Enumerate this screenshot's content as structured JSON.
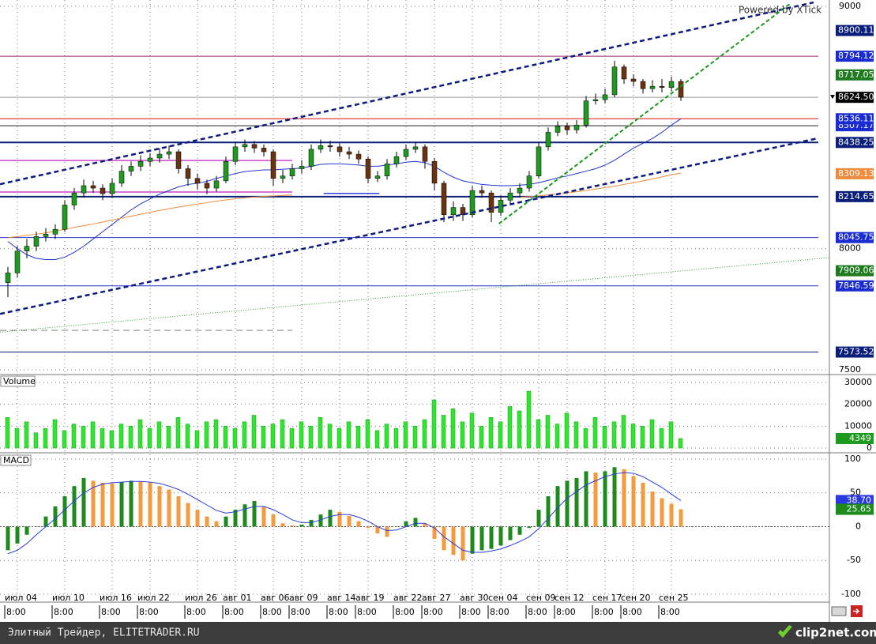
{
  "watermark": "Powered by XTick",
  "chart_data": [
    {
      "type": "candlestick",
      "categories": [
        null,
        "июл 04",
        null,
        null,
        null,
        null,
        "июл 10",
        null,
        null,
        null,
        null,
        "июл 16",
        null,
        null,
        null,
        "июл 22",
        null,
        null,
        null,
        null,
        "июл 26",
        null,
        null,
        null,
        "авг 01",
        null,
        null,
        null,
        "авг 06",
        null,
        null,
        "авг 09",
        null,
        null,
        null,
        "авг 14",
        null,
        null,
        "авг 19",
        null,
        null,
        null,
        "авг 22",
        null,
        null,
        "авг 27",
        null,
        null,
        null,
        "авг 30",
        null,
        null,
        "сен 04",
        null,
        null,
        null,
        "сен 09",
        null,
        null,
        "сен 12",
        null,
        null,
        null,
        "сен 17",
        null,
        null,
        "сен 20",
        null,
        null,
        null,
        "сен 25",
        null
      ],
      "times": [
        null,
        "8:00",
        null,
        null,
        null,
        null,
        "8:00",
        null,
        null,
        null,
        null,
        "8:00",
        null,
        null,
        null,
        "8:00",
        null,
        null,
        null,
        null,
        "8:00",
        null,
        null,
        null,
        "8:00",
        null,
        null,
        null,
        "8:00",
        null,
        null,
        "8:00",
        null,
        null,
        null,
        "8:00",
        null,
        null,
        "8:00",
        null,
        null,
        null,
        "8:00",
        null,
        null,
        "8:00",
        null,
        null,
        null,
        "8:00",
        null,
        null,
        "8:00",
        null,
        null,
        null,
        "8:00",
        null,
        null,
        "8:00",
        null,
        null,
        null,
        "8:00",
        null,
        null,
        "8:00",
        null,
        null,
        null,
        "8:00",
        null
      ],
      "open": [
        7860,
        7900,
        7990,
        8010,
        8050,
        8060,
        8080,
        8180,
        8230,
        8260,
        8250,
        8227,
        8270,
        8320,
        8340,
        8360,
        8374,
        8390,
        8400,
        8330,
        8290,
        8270,
        8250,
        8280,
        8360,
        8420,
        8430,
        8415,
        8400,
        8290,
        8300,
        8330,
        8340,
        8410,
        8425,
        8420,
        8400,
        8390,
        8370,
        8290,
        8300,
        8350,
        8380,
        8410,
        8420,
        8360,
        8270,
        8140,
        8170,
        8140,
        8240,
        8230,
        8150,
        8200,
        8230,
        8250,
        8300,
        8420,
        8480,
        8505,
        8490,
        8510,
        8610,
        8615,
        8635,
        8750,
        8700,
        8690,
        8660,
        8670,
        8665,
        8690
      ],
      "high": [
        7925,
        8010,
        8040,
        8070,
        8085,
        8100,
        8200,
        8250,
        8285,
        8280,
        8265,
        8290,
        8345,
        8360,
        8385,
        8395,
        8415,
        8425,
        8410,
        8345,
        8310,
        8285,
        8300,
        8380,
        8440,
        8450,
        8445,
        8430,
        8410,
        8325,
        8350,
        8365,
        8430,
        8450,
        8445,
        8435,
        8420,
        8405,
        8380,
        8320,
        8370,
        8400,
        8430,
        8440,
        8430,
        8375,
        8280,
        8195,
        8185,
        8260,
        8260,
        8240,
        8220,
        8250,
        8270,
        8320,
        8440,
        8500,
        8525,
        8520,
        8530,
        8630,
        8640,
        8660,
        8775,
        8760,
        8720,
        8700,
        8695,
        8700,
        8710,
        8700
      ],
      "low": [
        7800,
        7880,
        7960,
        7990,
        8030,
        8040,
        8070,
        8160,
        8210,
        8230,
        8200,
        8210,
        8255,
        8300,
        8320,
        8340,
        8355,
        8370,
        8310,
        8260,
        8245,
        8225,
        8235,
        8270,
        8345,
        8400,
        8395,
        8380,
        8260,
        8270,
        8285,
        8310,
        8325,
        8395,
        8400,
        8380,
        8370,
        8350,
        8270,
        8275,
        8285,
        8335,
        8365,
        8395,
        8330,
        8240,
        8110,
        8115,
        8115,
        8130,
        8210,
        8110,
        8135,
        8185,
        8210,
        8235,
        8290,
        8405,
        8465,
        8470,
        8475,
        8500,
        8595,
        8600,
        8625,
        8680,
        8670,
        8640,
        8645,
        8645,
        8650,
        8610
      ],
      "close": [
        7900,
        7990,
        8010,
        8050,
        8060,
        8080,
        8180,
        8230,
        8260,
        8250,
        8227,
        8270,
        8320,
        8340,
        8360,
        8374,
        8390,
        8400,
        8330,
        8290,
        8270,
        8250,
        8280,
        8360,
        8420,
        8430,
        8415,
        8400,
        8290,
        8300,
        8330,
        8340,
        8410,
        8425,
        8420,
        8400,
        8390,
        8370,
        8290,
        8300,
        8350,
        8380,
        8410,
        8420,
        8360,
        8270,
        8140,
        8170,
        8140,
        8240,
        8230,
        8150,
        8200,
        8230,
        8250,
        8300,
        8420,
        8480,
        8505,
        8490,
        8510,
        8610,
        8615,
        8635,
        8750,
        8700,
        8690,
        8660,
        8670,
        8665,
        8690,
        8625
      ],
      "up_color": "#1e9a1e",
      "down_color": "#6b3410",
      "wick_color": "#000000",
      "ylim": [
        7484,
        9026
      ],
      "yticks": [
        7500,
        8000,
        9000
      ],
      "grid": true,
      "lines": [
        {
          "color": "#2233cc",
          "values": [
            8030,
            8000,
            7975,
            7960,
            7955,
            7955,
            7965,
            7985,
            8010,
            8040,
            8070,
            8100,
            8130,
            8160,
            8185,
            8205,
            8225,
            8240,
            8255,
            8265,
            8270,
            8278,
            8290,
            8300,
            8310,
            8318,
            8322,
            8325,
            8325,
            8328,
            8330,
            8333,
            8340,
            8348,
            8350,
            8350,
            8348,
            8345,
            8340,
            8340,
            8345,
            8350,
            8357,
            8360,
            8355,
            8340,
            8315,
            8295,
            8280,
            8272,
            8265,
            8262,
            8260,
            8260,
            8262,
            8265,
            8272,
            8282,
            8292,
            8300,
            8310,
            8320,
            8330,
            8345,
            8365,
            8390,
            8415,
            8435,
            8455,
            8480,
            8510,
            8536
          ]
        },
        {
          "color": "#f08a3c",
          "values": [
            8045,
            8050,
            8055,
            8060,
            8065,
            8072,
            8080,
            8088,
            8095,
            8102,
            8110,
            8118,
            8126,
            8134,
            8142,
            8150,
            8158,
            8165,
            8172,
            8178,
            8184,
            8190,
            8196,
            8201,
            8206,
            8210,
            8213,
            8216,
            8218,
            8220,
            8222,
            null,
            null,
            null,
            null,
            null,
            null,
            null,
            null,
            null,
            null,
            null,
            null,
            null,
            null,
            null,
            null,
            null,
            null,
            null,
            null,
            null,
            null,
            null,
            8212,
            8215,
            8218,
            8222,
            8226,
            8230,
            8235,
            8240,
            8246,
            8252,
            8258,
            8265,
            8272,
            8280,
            8288,
            8296,
            8305,
            8312
          ]
        }
      ],
      "levels": [
        {
          "value": 8900.11,
          "label": "8900.11",
          "color": "#0b1f7a"
        },
        {
          "value": 8794.12,
          "label": "8794.12",
          "color": "#1a2bd0",
          "line_color": "#9b2d6e"
        },
        {
          "value": 8717.05,
          "label": "8717.05",
          "color": "#1e7a1e"
        },
        {
          "value": 8624.5,
          "label": "8624.50",
          "color": "#000000",
          "line_color": "#999999",
          "current": true
        },
        {
          "value": 8536.11,
          "label": "8536.11",
          "color": "#1a2bd0",
          "line_color": "#e01010"
        },
        {
          "value": 8507.17,
          "label": "8507.17",
          "color": "#1a2bd0",
          "line_color": "#222222"
        },
        {
          "value": 8438.25,
          "label": "8438.25",
          "color": "#0b1f7a",
          "line_color": "#0b1f7a",
          "width": 2
        },
        {
          "value": 8309.13,
          "label": "8309.13",
          "color": "#f08a3c"
        },
        {
          "value": 8214.65,
          "label": "8214.65",
          "color": "#0b1f7a",
          "line_color": "#0b1f7a",
          "width": 2
        },
        {
          "value": 8045.75,
          "label": "8045.75",
          "color": "#1a2bd0",
          "line_color": "#2233cc"
        },
        {
          "value": 7909.06,
          "label": "7909.06",
          "color": "#1e7a1e"
        },
        {
          "value": 7846.59,
          "label": "7846.59",
          "color": "#1a2bd0",
          "line_color": "#2233cc"
        },
        {
          "value": 7573.52,
          "label": "7573.52",
          "color": "#0b1f7a",
          "line_color": "#0b1f7a"
        }
      ],
      "trendlines": [
        {
          "color": "#0d1a80",
          "width": 2.5,
          "dash": "6,4",
          "points": [
            [
              -0.83,
              8266
            ],
            [
              85,
              9016
            ]
          ]
        },
        {
          "color": "#0d1a80",
          "width": 2.5,
          "dash": "6,4",
          "points": [
            [
              -0.83,
              7731
            ],
            [
              85.4,
              8455
            ]
          ]
        },
        {
          "color": "#1a9a1a",
          "width": 2,
          "dash": "5,3",
          "points": [
            [
              51.8,
              8103
            ],
            [
              82.5,
              9010
            ]
          ]
        },
        {
          "color": "#2a9a2a",
          "width": 1,
          "dash": "1,2",
          "points": [
            [
              -0.83,
              7656
            ],
            [
              87.5,
              7966
            ]
          ]
        }
      ],
      "segments": [
        {
          "from": -0.83,
          "to": 30,
          "price": 8364,
          "color": "#cc44cc"
        },
        {
          "from": -0.83,
          "to": 30,
          "price": 8234,
          "color": "#cc44cc"
        },
        {
          "from": 33.3,
          "to": 39.2,
          "price": 8228,
          "color": "#3344dd"
        },
        {
          "from": -0.83,
          "to": 30,
          "price": 7663,
          "color": "#aaaaaa",
          "dash": "8,5"
        }
      ]
    },
    {
      "type": "bar",
      "title": "Volume",
      "values": [
        14000,
        9000,
        12000,
        7000,
        9000,
        13000,
        8000,
        11000,
        10000,
        12000,
        9000,
        8000,
        11000,
        10000,
        13000,
        9000,
        12000,
        10000,
        14000,
        11000,
        8000,
        12000,
        13000,
        10000,
        9000,
        12000,
        15000,
        10000,
        11000,
        13000,
        9000,
        12000,
        10000,
        14000,
        11000,
        9000,
        12000,
        10000,
        13000,
        8000,
        11000,
        9000,
        12000,
        10000,
        13000,
        22000,
        15000,
        18000,
        12000,
        16000,
        10000,
        14000,
        12000,
        19000,
        17000,
        26000,
        13000,
        15000,
        11000,
        16000,
        12000,
        9000,
        14000,
        10000,
        12000,
        15000,
        11000,
        10000,
        13000,
        9000,
        12000,
        4349
      ],
      "color": "#2ee62e",
      "edge_color": "#1a9a1a",
      "label_color": "#1e9a1e",
      "ylim": [
        -1800,
        33250
      ],
      "yticks": [
        0,
        10000,
        20000,
        30000
      ],
      "grid": true
    },
    {
      "type": "macd",
      "title": "MACD",
      "values": [
        -35,
        -25,
        -12,
        0,
        15,
        30,
        45,
        60,
        72,
        68,
        65,
        64,
        66,
        68,
        67,
        65,
        60,
        55,
        45,
        35,
        25,
        15,
        8,
        15,
        25,
        33,
        38,
        30,
        18,
        5,
        2,
        3,
        10,
        18,
        25,
        22,
        16,
        8,
        -2,
        -10,
        -15,
        0,
        8,
        13,
        5,
        -18,
        -35,
        -42,
        -50,
        -40,
        -35,
        -33,
        -28,
        -20,
        -12,
        -2,
        25,
        45,
        60,
        68,
        72,
        82,
        80,
        82,
        88,
        85,
        75,
        65,
        52,
        42,
        34,
        25.65
      ],
      "up_color": "#1e8a1e",
      "down_color": "#f39a3c",
      "signal": {
        "color": "#2a3adf",
        "last_label": "38.70",
        "values": [
          -40,
          -35,
          -25,
          -12,
          0,
          12,
          25,
          38,
          50,
          58,
          63,
          65,
          66,
          67,
          67,
          66,
          64,
          60,
          55,
          48,
          40,
          32,
          24,
          20,
          22,
          26,
          30,
          30,
          25,
          18,
          10,
          6,
          6,
          10,
          15,
          18,
          18,
          14,
          8,
          0,
          -6,
          -5,
          0,
          5,
          5,
          -2,
          -15,
          -25,
          -35,
          -38,
          -38,
          -36,
          -33,
          -28,
          -22,
          -15,
          -3,
          12,
          28,
          42,
          52,
          62,
          68,
          74,
          78,
          80,
          79,
          74,
          66,
          58,
          48,
          38.7
        ]
      },
      "ylim": [
        -110.6,
        108.2
      ],
      "yticks": [
        -100,
        -50,
        0,
        50,
        100
      ],
      "grid": true
    }
  ],
  "footer": {
    "text": "Элитный Трейдер, ELITETRADER.RU",
    "logo": "clip2net.com"
  }
}
